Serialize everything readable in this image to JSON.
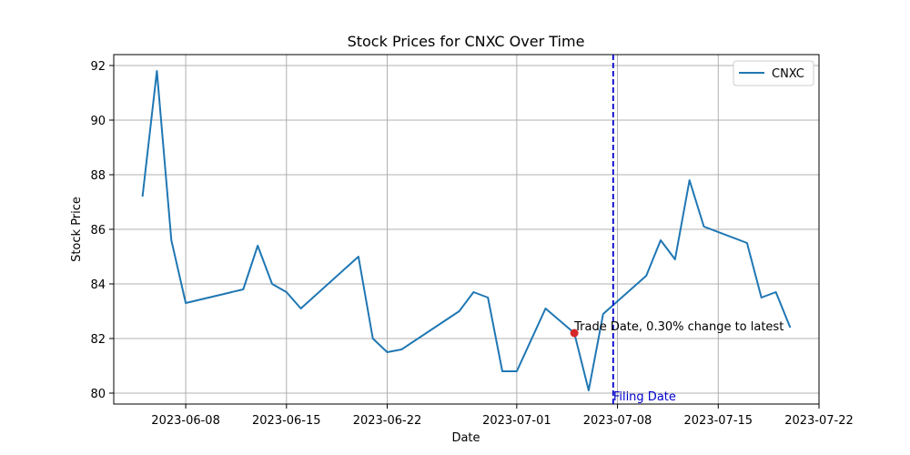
{
  "chart_data": {
    "type": "line",
    "title": "Stock Prices for CNXC Over Time",
    "xlabel": "Date",
    "ylabel": "Stock Price",
    "xlim": [
      "2023-06-03",
      "2023-07-22"
    ],
    "ylim": [
      79.6,
      92.4
    ],
    "x_ticks": [
      "2023-06-08",
      "2023-06-15",
      "2023-06-22",
      "2023-07-01",
      "2023-07-08",
      "2023-07-15",
      "2023-07-22"
    ],
    "y_ticks": [
      80,
      82,
      84,
      86,
      88,
      90,
      92
    ],
    "grid": true,
    "legend_placement": "top-right",
    "series": [
      {
        "name": "CNXC",
        "color": "#1f77b4",
        "points": [
          [
            "2023-06-05",
            87.2
          ],
          [
            "2023-06-06",
            91.8
          ],
          [
            "2023-06-07",
            85.6
          ],
          [
            "2023-06-08",
            83.3
          ],
          [
            "2023-06-12",
            83.8
          ],
          [
            "2023-06-13",
            85.4
          ],
          [
            "2023-06-14",
            84.0
          ],
          [
            "2023-06-15",
            83.7
          ],
          [
            "2023-06-16",
            83.1
          ],
          [
            "2023-06-20",
            85.0
          ],
          [
            "2023-06-21",
            82.0
          ],
          [
            "2023-06-22",
            81.5
          ],
          [
            "2023-06-23",
            81.6
          ],
          [
            "2023-06-27",
            83.0
          ],
          [
            "2023-06-28",
            83.7
          ],
          [
            "2023-06-29",
            83.5
          ],
          [
            "2023-06-30",
            80.8
          ],
          [
            "2023-07-01",
            80.8
          ],
          [
            "2023-07-03",
            83.1
          ],
          [
            "2023-07-05",
            82.2
          ],
          [
            "2023-07-06",
            80.1
          ],
          [
            "2023-07-07",
            82.9
          ],
          [
            "2023-07-10",
            84.3
          ],
          [
            "2023-07-11",
            85.6
          ],
          [
            "2023-07-12",
            84.9
          ],
          [
            "2023-07-13",
            87.8
          ],
          [
            "2023-07-14",
            86.1
          ],
          [
            "2023-07-17",
            85.5
          ],
          [
            "2023-07-18",
            83.5
          ],
          [
            "2023-07-19",
            83.7
          ],
          [
            "2023-07-20",
            82.4
          ]
        ]
      }
    ],
    "annotations": {
      "trade_point": {
        "date": "2023-07-05",
        "value": 82.2,
        "color": "#d62728"
      },
      "trade_label": "Trade Date, 0.30% change to latest",
      "filing_line": {
        "date": "2023-07-07.7",
        "color": "#0000cc"
      },
      "filing_label": "Filing Date"
    }
  }
}
